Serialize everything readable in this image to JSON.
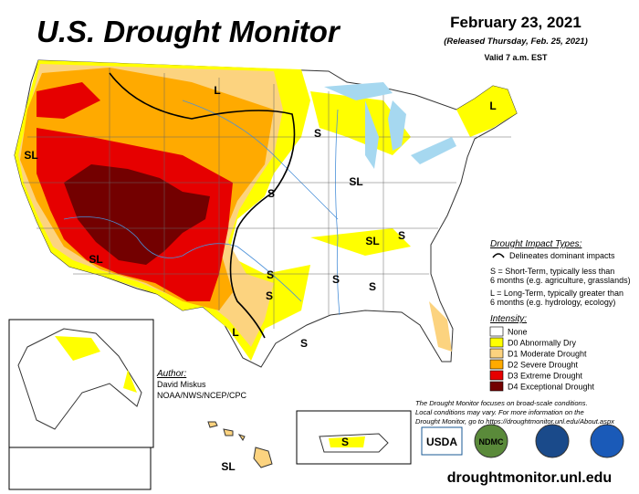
{
  "header": {
    "title": "U.S. Drought Monitor",
    "date": "February 23, 2021",
    "released": "(Released Thursday, Feb. 25, 2021)",
    "valid": "Valid 7 a.m. EST"
  },
  "impact": {
    "heading": "Drought Impact Types:",
    "line": "Delineates dominant impacts",
    "short_term": [
      "S = Short-Term, typically less than",
      "6 months (e.g. agriculture, grasslands)"
    ],
    "long_term": [
      "L = Long-Term, typically greater than",
      "6 months (e.g. hydrology, ecology)"
    ]
  },
  "intensity": {
    "heading": "Intensity:",
    "items": [
      {
        "label": "None",
        "color": "#ffffff"
      },
      {
        "label": "D0 Abnormally Dry",
        "color": "#ffff00"
      },
      {
        "label": "D1 Moderate Drought",
        "color": "#fcd37f"
      },
      {
        "label": "D2 Severe Drought",
        "color": "#ffaa00"
      },
      {
        "label": "D3 Extreme Drought",
        "color": "#e60000"
      },
      {
        "label": "D4 Exceptional Drought",
        "color": "#730000"
      }
    ]
  },
  "author": {
    "heading": "Author:",
    "name": "David Miskus",
    "org": "NOAA/NWS/NCEP/CPC"
  },
  "note": [
    "The Drought Monitor focuses on broad-scale conditions.",
    "Local conditions may vary. For more information on the",
    "Drought Monitor, go to https://droughtmonitor.unl.edu/About.aspx"
  ],
  "logos": [
    "USDA",
    "NDMC"
  ],
  "url": "droughtmonitor.unl.edu",
  "map_labels": [
    "L",
    "SL",
    "S",
    "L",
    "S",
    "SL",
    "S",
    "SL",
    "S",
    "S",
    "S",
    "S",
    "L",
    "SL",
    "SL",
    "S",
    "S"
  ]
}
